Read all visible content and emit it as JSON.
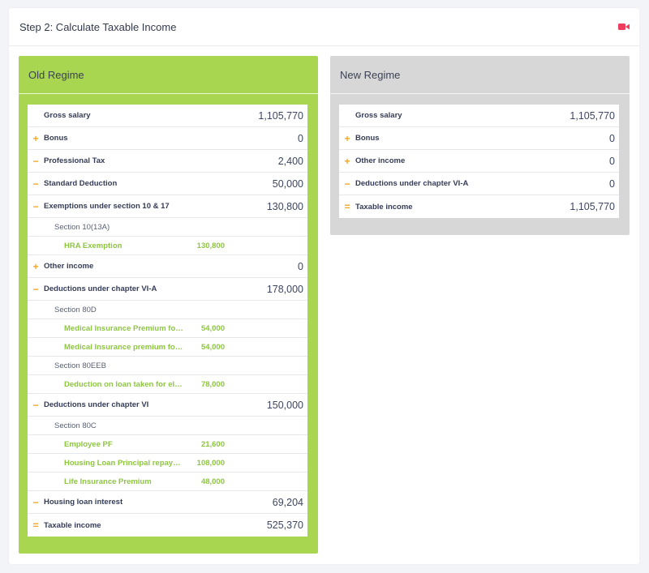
{
  "page": {
    "title": "Step 2: Calculate Taxable Income",
    "accent_color": "#ee3d5c"
  },
  "old_regime": {
    "title": "Old Regime",
    "rows": {
      "gross_salary": {
        "symbol": "",
        "label": "Gross salary",
        "value": "1,105,770"
      },
      "bonus": {
        "symbol": "+",
        "label": "Bonus",
        "value": "0"
      },
      "professional_tax": {
        "symbol": "−",
        "label": "Professional Tax",
        "value": "2,400"
      },
      "standard_deduction": {
        "symbol": "−",
        "label": "Standard Deduction",
        "value": "50,000"
      },
      "exemptions": {
        "symbol": "−",
        "label": "Exemptions under section 10 & 17",
        "value": "130,800"
      },
      "sec_10_13a": {
        "label": "Section 10(13A)"
      },
      "hra": {
        "label": "HRA Exemption",
        "value": "130,800"
      },
      "other_income": {
        "symbol": "+",
        "label": "Other income",
        "value": "0"
      },
      "deductions_via": {
        "symbol": "−",
        "label": "Deductions under chapter VI-A",
        "value": "178,000"
      },
      "sec_80d": {
        "label": "Section 80D"
      },
      "med_ins_1": {
        "label": "Medical Insurance Premium for self",
        "value": "54,000"
      },
      "med_ins_2": {
        "label": "Medical Insurance premium for parents",
        "value": "54,000"
      },
      "sec_80eeb": {
        "label": "Section 80EEB"
      },
      "loan_deduction": {
        "label": "Deduction on loan taken for electric vehicle",
        "value": "78,000"
      },
      "deductions_vi": {
        "symbol": "−",
        "label": "Deductions under chapter VI",
        "value": "150,000"
      },
      "sec_80c": {
        "label": "Section 80C"
      },
      "employee_pf": {
        "label": "Employee PF",
        "value": "21,600"
      },
      "housing_principal": {
        "label": "Housing Loan Principal repayment",
        "value": "108,000"
      },
      "life_insurance": {
        "label": "Life Insurance Premium",
        "value": "48,000"
      },
      "housing_interest": {
        "symbol": "−",
        "label": "Housing loan interest",
        "value": "69,204"
      },
      "taxable_income": {
        "symbol": "=",
        "label": "Taxable income",
        "value": "525,370"
      }
    }
  },
  "new_regime": {
    "title": "New Regime",
    "rows": {
      "gross_salary": {
        "symbol": "",
        "label": "Gross salary",
        "value": "1,105,770"
      },
      "bonus": {
        "symbol": "+",
        "label": "Bonus",
        "value": "0"
      },
      "other_income": {
        "symbol": "+",
        "label": "Other income",
        "value": "0"
      },
      "deductions_via": {
        "symbol": "−",
        "label": "Deductions under chapter VI-A",
        "value": "0"
      },
      "taxable_income": {
        "symbol": "=",
        "label": "Taxable income",
        "value": "1,105,770"
      }
    }
  }
}
